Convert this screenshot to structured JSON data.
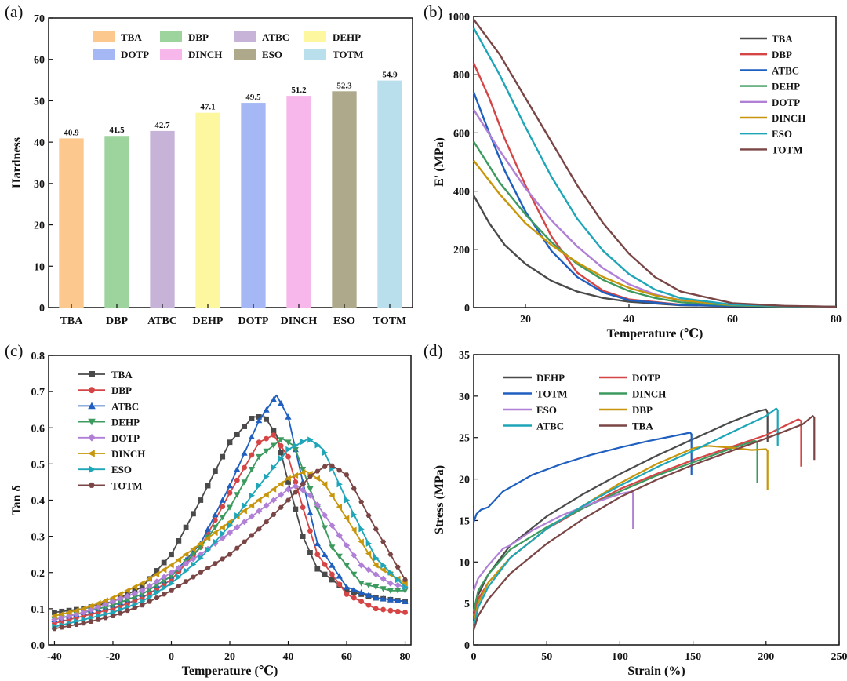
{
  "panels": {
    "a": {
      "label": "(a)"
    },
    "b": {
      "label": "(b)"
    },
    "c": {
      "label": "(c)"
    },
    "d": {
      "label": "(d)"
    }
  },
  "chart_data": [
    {
      "id": "a",
      "type": "bar",
      "title": "",
      "xlabel": "",
      "ylabel": "Hardness",
      "ylim": [
        0,
        70
      ],
      "yticks": [
        0,
        10,
        20,
        30,
        40,
        50,
        60,
        70
      ],
      "grid": false,
      "legend": "top",
      "categories": [
        "TBA",
        "DBP",
        "ATBC",
        "DEHP",
        "DOTP",
        "DINCH",
        "ESO",
        "TOTM"
      ],
      "values": [
        40.9,
        41.5,
        42.7,
        47.1,
        49.5,
        51.2,
        52.3,
        54.9
      ],
      "value_labels": [
        "40.9",
        "41.5",
        "42.7",
        "47.1",
        "49.5",
        "51.2",
        "52.3",
        "54.9"
      ],
      "colors": [
        "#fcc88e",
        "#9dd39c",
        "#c8b3d8",
        "#fdf7a0",
        "#a5b7f4",
        "#f7b7ea",
        "#ada98a",
        "#b9dfec"
      ]
    },
    {
      "id": "b",
      "type": "line",
      "title": "",
      "xlabel": "Temperature (℃)",
      "ylabel": "E' (MPa)",
      "xlim": [
        10,
        80
      ],
      "ylim": [
        0,
        1000
      ],
      "xticks": [
        20,
        40,
        60,
        80
      ],
      "yticks": [
        0,
        200,
        400,
        600,
        800,
        1000
      ],
      "grid": false,
      "legend": "top-right",
      "series": [
        {
          "name": "TBA",
          "color": "#4a4a4a",
          "x": [
            10,
            13,
            16,
            20,
            25,
            30,
            35,
            40,
            50,
            60,
            70,
            80
          ],
          "y": [
            385,
            290,
            215,
            150,
            92,
            55,
            33,
            20,
            8,
            5,
            4,
            3
          ]
        },
        {
          "name": "DBP",
          "color": "#d64545",
          "x": [
            10,
            13,
            16,
            20,
            25,
            30,
            35,
            40,
            50,
            60,
            70,
            80
          ],
          "y": [
            840,
            720,
            580,
            420,
            245,
            120,
            58,
            28,
            10,
            5,
            4,
            3
          ]
        },
        {
          "name": "ATBC",
          "color": "#1f5fbf",
          "x": [
            10,
            13,
            16,
            20,
            25,
            30,
            35,
            40,
            50,
            60,
            70,
            80
          ],
          "y": [
            740,
            600,
            470,
            330,
            195,
            105,
            52,
            25,
            9,
            5,
            4,
            3
          ]
        },
        {
          "name": "DEHP",
          "color": "#3c9a5f",
          "x": [
            10,
            15,
            20,
            25,
            30,
            35,
            40,
            45,
            50,
            60,
            70,
            80
          ],
          "y": [
            570,
            430,
            320,
            225,
            150,
            95,
            57,
            33,
            18,
            7,
            4,
            3
          ]
        },
        {
          "name": "DOTP",
          "color": "#b07fd6",
          "x": [
            10,
            15,
            20,
            25,
            30,
            35,
            40,
            45,
            50,
            60,
            70,
            80
          ],
          "y": [
            680,
            540,
            410,
            300,
            210,
            135,
            80,
            45,
            25,
            9,
            5,
            3
          ]
        },
        {
          "name": "DINCH",
          "color": "#c8960c",
          "x": [
            10,
            15,
            20,
            25,
            30,
            35,
            40,
            45,
            50,
            60,
            70,
            80
          ],
          "y": [
            505,
            390,
            290,
            215,
            155,
            105,
            68,
            42,
            25,
            9,
            5,
            3
          ]
        },
        {
          "name": "ESO",
          "color": "#1ea6b8",
          "x": [
            10,
            15,
            20,
            25,
            30,
            35,
            40,
            45,
            50,
            60,
            70,
            80
          ],
          "y": [
            960,
            800,
            620,
            450,
            305,
            195,
            115,
            62,
            32,
            10,
            5,
            3
          ]
        },
        {
          "name": "TOTM",
          "color": "#7a4545",
          "x": [
            10,
            15,
            20,
            25,
            30,
            35,
            40,
            45,
            50,
            60,
            70,
            80
          ],
          "y": [
            990,
            870,
            720,
            570,
            420,
            290,
            185,
            105,
            55,
            15,
            6,
            3
          ]
        }
      ]
    },
    {
      "id": "c",
      "type": "line",
      "title": "",
      "xlabel": "Temperature (℃)",
      "ylabel": "Tan δ",
      "xlim": [
        -42,
        82
      ],
      "ylim": [
        0,
        0.8
      ],
      "xticks": [
        -40,
        -20,
        0,
        20,
        40,
        60,
        80
      ],
      "yticks": [
        0.0,
        0.1,
        0.2,
        0.3,
        0.4,
        0.5,
        0.6,
        0.7,
        0.8
      ],
      "grid": false,
      "legend": "top-left",
      "series": [
        {
          "name": "TBA",
          "color": "#4a4a4a",
          "marker": "square",
          "x": [
            -40,
            -30,
            -20,
            -10,
            0,
            10,
            20,
            28,
            32,
            36,
            40,
            45,
            50,
            60,
            70,
            80
          ],
          "y": [
            0.09,
            0.1,
            0.12,
            0.16,
            0.25,
            0.4,
            0.56,
            0.63,
            0.63,
            0.58,
            0.45,
            0.3,
            0.21,
            0.15,
            0.13,
            0.12
          ]
        },
        {
          "name": "DBP",
          "color": "#d64545",
          "marker": "circle",
          "x": [
            -40,
            -30,
            -20,
            -10,
            0,
            10,
            20,
            30,
            35,
            40,
            45,
            50,
            60,
            70,
            80
          ],
          "y": [
            0.06,
            0.08,
            0.1,
            0.13,
            0.18,
            0.27,
            0.42,
            0.56,
            0.58,
            0.52,
            0.38,
            0.25,
            0.14,
            0.1,
            0.09
          ]
        },
        {
          "name": "ATBC",
          "color": "#1f5fbf",
          "marker": "triangle",
          "x": [
            -40,
            -30,
            -20,
            -10,
            0,
            10,
            20,
            30,
            36,
            40,
            45,
            50,
            60,
            70,
            80
          ],
          "y": [
            0.07,
            0.09,
            0.11,
            0.14,
            0.19,
            0.28,
            0.44,
            0.62,
            0.69,
            0.63,
            0.45,
            0.28,
            0.16,
            0.13,
            0.12
          ]
        },
        {
          "name": "DEHP",
          "color": "#3c9a5f",
          "marker": "triangle-down",
          "x": [
            -40,
            -30,
            -20,
            -10,
            0,
            10,
            20,
            30,
            38,
            42,
            48,
            55,
            65,
            75,
            80
          ],
          "y": [
            0.07,
            0.09,
            0.11,
            0.14,
            0.19,
            0.27,
            0.38,
            0.52,
            0.57,
            0.55,
            0.42,
            0.27,
            0.17,
            0.15,
            0.15
          ]
        },
        {
          "name": "DOTP",
          "color": "#b07fd6",
          "marker": "diamond",
          "x": [
            -40,
            -30,
            -20,
            -10,
            0,
            10,
            20,
            30,
            40,
            43,
            48,
            55,
            65,
            75,
            80
          ],
          "y": [
            0.07,
            0.09,
            0.12,
            0.15,
            0.2,
            0.25,
            0.31,
            0.37,
            0.43,
            0.44,
            0.41,
            0.33,
            0.22,
            0.17,
            0.16
          ]
        },
        {
          "name": "DINCH",
          "color": "#c8960c",
          "marker": "triangle-left",
          "x": [
            -40,
            -30,
            -20,
            -10,
            0,
            10,
            20,
            30,
            40,
            46,
            52,
            60,
            70,
            80
          ],
          "y": [
            0.08,
            0.1,
            0.13,
            0.17,
            0.22,
            0.28,
            0.34,
            0.4,
            0.46,
            0.48,
            0.45,
            0.35,
            0.22,
            0.17
          ]
        },
        {
          "name": "ESO",
          "color": "#1ea6b8",
          "marker": "triangle-right",
          "x": [
            -40,
            -30,
            -20,
            -10,
            0,
            10,
            20,
            30,
            40,
            47,
            52,
            60,
            70,
            80
          ],
          "y": [
            0.05,
            0.07,
            0.09,
            0.12,
            0.17,
            0.24,
            0.33,
            0.44,
            0.54,
            0.57,
            0.54,
            0.4,
            0.24,
            0.16
          ]
        },
        {
          "name": "TOTM",
          "color": "#7a4545",
          "marker": "hexagon",
          "x": [
            -40,
            -30,
            -20,
            -10,
            0,
            10,
            20,
            30,
            40,
            48,
            54,
            60,
            70,
            80
          ],
          "y": [
            0.045,
            0.06,
            0.08,
            0.11,
            0.15,
            0.2,
            0.25,
            0.32,
            0.4,
            0.47,
            0.5,
            0.47,
            0.32,
            0.18
          ]
        }
      ]
    },
    {
      "id": "d",
      "type": "line",
      "title": "",
      "xlabel": "Strain (%)",
      "ylabel": "Stress (MPa)",
      "xlim": [
        0,
        250
      ],
      "ylim": [
        0,
        35
      ],
      "xticks": [
        0,
        50,
        100,
        150,
        200,
        250
      ],
      "yticks": [
        0,
        5,
        10,
        15,
        20,
        25,
        30,
        35
      ],
      "grid": false,
      "legend": "top-left",
      "series": [
        {
          "name": "DEHP",
          "color": "#4a4a4a",
          "x": [
            0,
            3,
            10,
            25,
            50,
            75,
            100,
            125,
            150,
            175,
            195,
            200,
            201,
            201
          ],
          "y": [
            3,
            6,
            8.5,
            12,
            15.5,
            18.2,
            20.6,
            22.8,
            24.8,
            26.8,
            28.2,
            28.4,
            28.0,
            24.5
          ]
        },
        {
          "name": "DOTP",
          "color": "#d64545",
          "x": [
            0,
            3,
            10,
            25,
            50,
            75,
            100,
            125,
            150,
            175,
            200,
            222,
            224,
            224
          ],
          "y": [
            3.5,
            5.5,
            7.5,
            10.5,
            14.0,
            16.5,
            18.8,
            20.6,
            22.3,
            23.8,
            25.3,
            27.2,
            27.0,
            21.5
          ]
        },
        {
          "name": "TOTM",
          "color": "#1f5fbf",
          "x": [
            0,
            2,
            5,
            10,
            20,
            40,
            60,
            80,
            100,
            120,
            140,
            148,
            149,
            149
          ],
          "y": [
            14.8,
            15.8,
            16.3,
            16.6,
            18.5,
            20.5,
            21.8,
            22.9,
            23.8,
            24.6,
            25.3,
            25.6,
            25.4,
            20.5
          ]
        },
        {
          "name": "DINCH",
          "color": "#3c9a5f",
          "x": [
            0,
            3,
            10,
            25,
            50,
            75,
            100,
            125,
            150,
            175,
            192,
            194,
            194
          ],
          "y": [
            4,
            6.5,
            8.5,
            11.5,
            14.2,
            16.5,
            18.5,
            20.4,
            22.0,
            23.6,
            24.6,
            24.5,
            19.5
          ]
        },
        {
          "name": "ESO",
          "color": "#b07fd6",
          "x": [
            0,
            3,
            10,
            20,
            25,
            40,
            60,
            80,
            100,
            108,
            109,
            109
          ],
          "y": [
            6.5,
            8,
            9.6,
            11.6,
            12.0,
            13.8,
            15.6,
            17.0,
            18.2,
            18.5,
            18.3,
            14.0
          ]
        },
        {
          "name": "DBP",
          "color": "#c8960c",
          "x": [
            0,
            3,
            10,
            25,
            50,
            75,
            100,
            125,
            150,
            160,
            175,
            190,
            200,
            201,
            201
          ],
          "y": [
            2.5,
            5,
            7.5,
            10.5,
            14.0,
            16.8,
            19.5,
            21.8,
            23.7,
            24.0,
            23.8,
            23.5,
            23.6,
            23.4,
            18.7
          ]
        },
        {
          "name": "ATBC",
          "color": "#1ea6b8",
          "x": [
            0,
            3,
            10,
            25,
            50,
            75,
            100,
            125,
            150,
            175,
            200,
            207,
            208,
            208
          ],
          "y": [
            2,
            4.5,
            7,
            10.5,
            14.0,
            16.8,
            19.2,
            21.4,
            23.4,
            25.5,
            27.6,
            28.5,
            28.3,
            24.0
          ]
        },
        {
          "name": "TBA",
          "color": "#7a4545",
          "x": [
            0,
            3,
            10,
            25,
            50,
            75,
            100,
            125,
            150,
            175,
            200,
            225,
            232,
            233,
            233
          ],
          "y": [
            1.8,
            3.5,
            5.5,
            8.6,
            12.2,
            15.2,
            17.8,
            19.9,
            21.7,
            23.3,
            24.9,
            26.6,
            27.6,
            27.4,
            22.3
          ]
        }
      ]
    }
  ]
}
